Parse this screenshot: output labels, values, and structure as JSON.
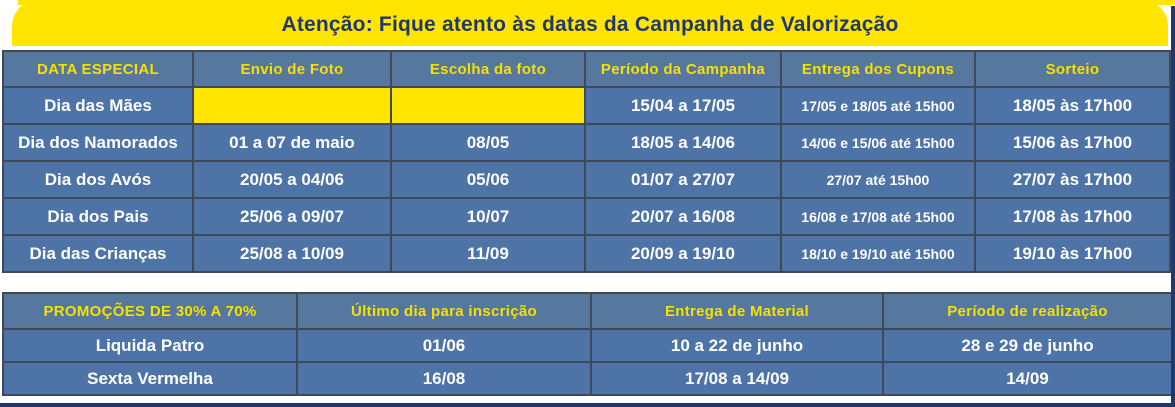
{
  "banner": {
    "text": "Atenção: Fique atento às datas da Campanha de Valorização"
  },
  "colors": {
    "yellow": "#FFE500",
    "navy_text": "#21386F",
    "header_blue": "#56779E",
    "row_blue": "#4D73A7",
    "border": "#3D4A59",
    "edge_navy": "#1E3A6B",
    "header_text_yellow": "#F5E100",
    "cell_text_white": "#FFFFFF"
  },
  "campaign_table": {
    "headers": [
      "DATA ESPECIAL",
      "Envio de Foto",
      "Escolha da foto",
      "Período da Campanha",
      "Entrega dos Cupons",
      "Sorteio"
    ],
    "rows": [
      {
        "cells": [
          "Dia das Mães",
          "",
          "",
          "15/04 a 17/05",
          "17/05 e 18/05 até 15h00",
          "18/05 às 17h00"
        ],
        "highlight_cols": [
          1,
          2
        ]
      },
      {
        "cells": [
          "Dia dos Namorados",
          "01 a 07 de maio",
          "08/05",
          "18/05 a 14/06",
          "14/06 e 15/06 até 15h00",
          "15/06 às 17h00"
        ],
        "highlight_cols": []
      },
      {
        "cells": [
          "Dia dos Avós",
          "20/05 a 04/06",
          "05/06",
          "01/07 a 27/07",
          "27/07 até 15h00",
          "27/07 às 17h00"
        ],
        "highlight_cols": []
      },
      {
        "cells": [
          "Dia dos Pais",
          "25/06 a 09/07",
          "10/07",
          "20/07 a 16/08",
          "16/08 e 17/08 até 15h00",
          "17/08 às 17h00"
        ],
        "highlight_cols": []
      },
      {
        "cells": [
          "Dia das Crianças",
          "25/08 a 10/09",
          "11/09",
          "20/09 a 19/10",
          "18/10 e 19/10 até 15h00",
          "19/10 às 17h00"
        ],
        "highlight_cols": []
      }
    ],
    "small_text_col": 4
  },
  "promotions_table": {
    "headers": [
      "PROMOÇÕES DE 30% A 70%",
      "Último dia para inscrição",
      "Entrega de Material",
      "Período de realização"
    ],
    "rows": [
      {
        "cells": [
          "Liquida Patro",
          "01/06",
          "10 a 22 de junho",
          "28 e 29 de junho"
        ],
        "highlight_cols": []
      },
      {
        "cells": [
          "Sexta Vermelha",
          "16/08",
          "17/08 a 14/09",
          "14/09"
        ],
        "highlight_cols": []
      }
    ]
  }
}
